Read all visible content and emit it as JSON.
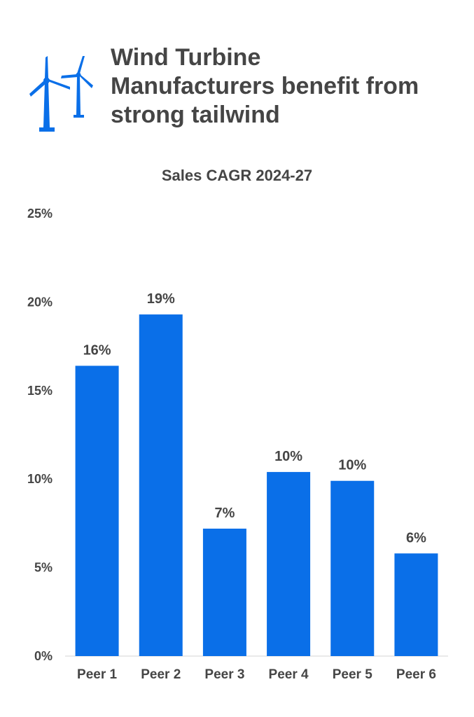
{
  "header": {
    "title_lines": [
      "Wind Turbine",
      "Manufacturers benefit from",
      "strong tailwind"
    ],
    "logo_icon": "wind-turbines-icon"
  },
  "colors": {
    "bar": "#0a6fe8",
    "text": "#454545",
    "axis": "#d4d4d4"
  },
  "chart_data": {
    "type": "bar",
    "title": "Sales CAGR 2024-27",
    "xlabel": "",
    "ylabel": "",
    "categories": [
      "Peer 1",
      "Peer 2",
      "Peer 3",
      "Peer 4",
      "Peer 5",
      "Peer 6"
    ],
    "values": [
      16.4,
      19.3,
      7.2,
      10.4,
      9.9,
      5.8
    ],
    "data_labels": [
      "16%",
      "19%",
      "7%",
      "10%",
      "10%",
      "6%"
    ],
    "ylim": [
      0,
      25
    ],
    "yticks": [
      0,
      5,
      10,
      15,
      20,
      25
    ],
    "ytick_labels": [
      "0%",
      "5%",
      "10%",
      "15%",
      "20%",
      "25%"
    ],
    "grid": false,
    "legend": "none"
  }
}
